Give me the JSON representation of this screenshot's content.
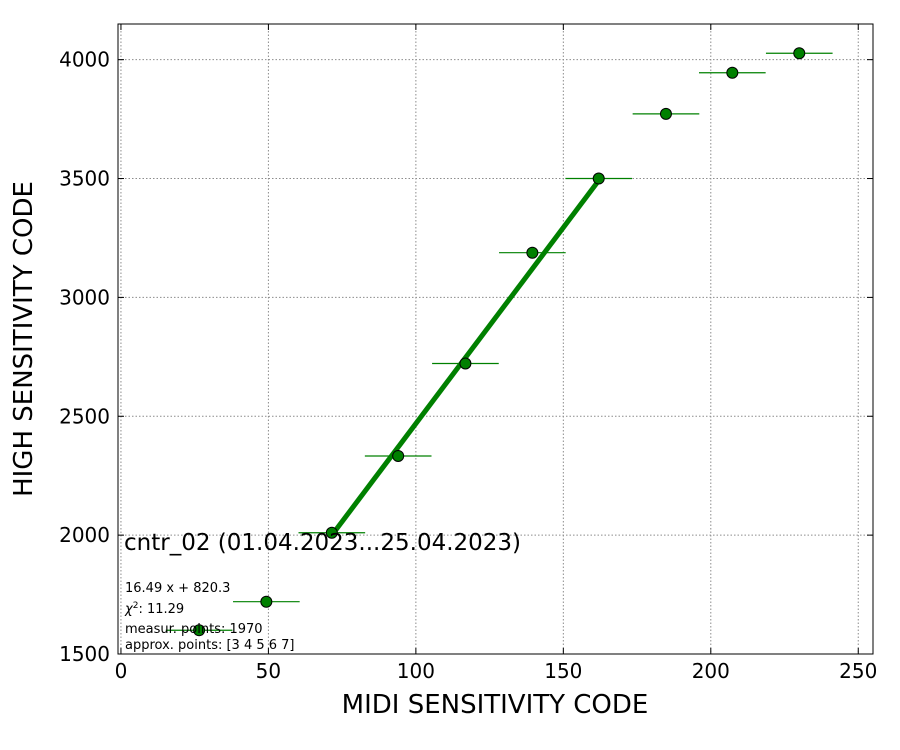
{
  "chart_data": {
    "type": "scatter",
    "title": "",
    "xlabel": "MIDI SENSITIVITY CODE",
    "ylabel": "HIGH SENSITIVITY CODE",
    "xlim": [
      -1,
      255
    ],
    "ylim": [
      1500,
      4150
    ],
    "xticks": [
      0,
      50,
      100,
      150,
      200,
      250
    ],
    "yticks": [
      1500,
      2000,
      2500,
      3000,
      3500,
      4000
    ],
    "grid": true,
    "series": [
      {
        "marker_color": "#008000",
        "x": [
          26.5,
          49.3,
          71.5,
          94.0,
          116.8,
          139.5,
          162.0,
          184.8,
          207.3,
          230.0
        ],
        "y": [
          1600,
          1720,
          2010,
          2333,
          2722,
          3188,
          3500,
          3772,
          3945,
          4027
        ],
        "x_err": [
          11.3,
          11.3,
          11.3,
          11.3,
          11.3,
          11.3,
          11.3,
          11.3,
          11.3,
          11.3
        ]
      }
    ],
    "fit": {
      "color": "#008000",
      "slope": 16.49,
      "intercept": 820.3,
      "x_range": [
        71.5,
        162.0
      ]
    },
    "annotations": {
      "heading": "cntr_02 (01.04.2023...25.04.2023)",
      "equation": "16.49 x + 820.3",
      "chi2_value": ": 11.29",
      "measur_points": "measur. points: 1970",
      "approx_points": "approx. points: [3 4 5 6 7]"
    }
  }
}
